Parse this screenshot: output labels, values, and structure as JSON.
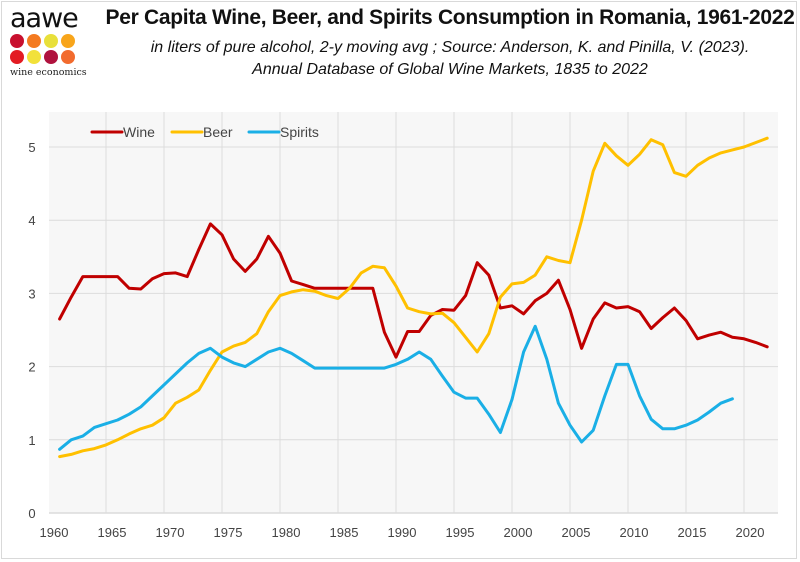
{
  "logo": {
    "word": "aawe",
    "sub": "wine economics",
    "dot_colors": [
      "#c8102e",
      "#f47a20",
      "#e8e03a",
      "#f8a51b",
      "#e31b23",
      "#f2e13a",
      "#b0123e",
      "#f26b2e"
    ]
  },
  "header": {
    "title": "Per Capita Wine, Beer, and Spirits Consumption in Romania, 1961-2022",
    "subtitle_line1": "in liters of pure alcohol, 2-y moving avg ; Source:  Anderson, K. and Pinilla, V. (2023).",
    "subtitle_line2": "Annual Database of Global Wine Markets, 1835 to 2022"
  },
  "chart_data": {
    "type": "line",
    "title": "Per Capita Wine, Beer, and Spirits Consumption in Romania, 1961-2022",
    "xlabel": "",
    "ylabel": "",
    "xlim": [
      1960,
      2023
    ],
    "ylim": [
      0,
      5.5
    ],
    "x_ticks": [
      1960,
      1965,
      1970,
      1975,
      1980,
      1985,
      1990,
      1995,
      2000,
      2005,
      2010,
      2015,
      2020
    ],
    "y_ticks": [
      0,
      1,
      2,
      3,
      4,
      5
    ],
    "grid": "both",
    "legend_position": "top-left",
    "series": [
      {
        "name": "Wine",
        "color": "#c00000",
        "start_year": 1961,
        "values": [
          2.65,
          2.95,
          3.23,
          3.23,
          3.23,
          3.23,
          3.07,
          3.06,
          3.2,
          3.27,
          3.28,
          3.23,
          3.6,
          3.95,
          3.8,
          3.47,
          3.3,
          3.47,
          3.78,
          3.55,
          3.17,
          3.12,
          3.07,
          3.07,
          3.07,
          3.07,
          3.07,
          3.07,
          2.47,
          2.13,
          2.48,
          2.48,
          2.7,
          2.78,
          2.77,
          2.97,
          3.42,
          3.25,
          2.8,
          2.83,
          2.72,
          2.9,
          3.0,
          3.18,
          2.78,
          2.25,
          2.65,
          2.87,
          2.8,
          2.82,
          2.75,
          2.52,
          2.67,
          2.8,
          2.63,
          2.38,
          2.43,
          2.47,
          2.4,
          2.38,
          2.33,
          2.27
        ]
      },
      {
        "name": "Beer",
        "color": "#ffc000",
        "start_year": 1961,
        "values": [
          0.77,
          0.8,
          0.85,
          0.88,
          0.93,
          1.0,
          1.08,
          1.15,
          1.2,
          1.3,
          1.5,
          1.58,
          1.68,
          1.95,
          2.2,
          2.28,
          2.33,
          2.45,
          2.75,
          2.97,
          3.02,
          3.05,
          3.03,
          2.97,
          2.93,
          3.07,
          3.28,
          3.37,
          3.35,
          3.1,
          2.8,
          2.75,
          2.72,
          2.73,
          2.6,
          2.4,
          2.2,
          2.45,
          2.95,
          3.13,
          3.15,
          3.25,
          3.5,
          3.45,
          3.42,
          4.0,
          4.67,
          5.05,
          4.88,
          4.75,
          4.9,
          5.1,
          5.03,
          4.65,
          4.6,
          4.75,
          4.85,
          4.92,
          4.96,
          5.0,
          5.06,
          5.12
        ]
      },
      {
        "name": "Spirits",
        "color": "#1aafe6",
        "start_year": 1961,
        "values": [
          0.87,
          1.0,
          1.05,
          1.17,
          1.22,
          1.27,
          1.35,
          1.45,
          1.6,
          1.75,
          1.9,
          2.05,
          2.18,
          2.25,
          2.13,
          2.05,
          2.0,
          2.1,
          2.2,
          2.25,
          2.18,
          2.08,
          1.98,
          1.98,
          1.98,
          1.98,
          1.98,
          1.98,
          1.98,
          2.03,
          2.1,
          2.2,
          2.1,
          1.87,
          1.65,
          1.57,
          1.57,
          1.35,
          1.1,
          1.55,
          2.2,
          2.55,
          2.1,
          1.5,
          1.2,
          0.97,
          1.13,
          1.6,
          2.03,
          2.03,
          1.6,
          1.28,
          1.15,
          1.15,
          1.2,
          1.27,
          1.38,
          1.5,
          1.56
        ]
      }
    ]
  }
}
